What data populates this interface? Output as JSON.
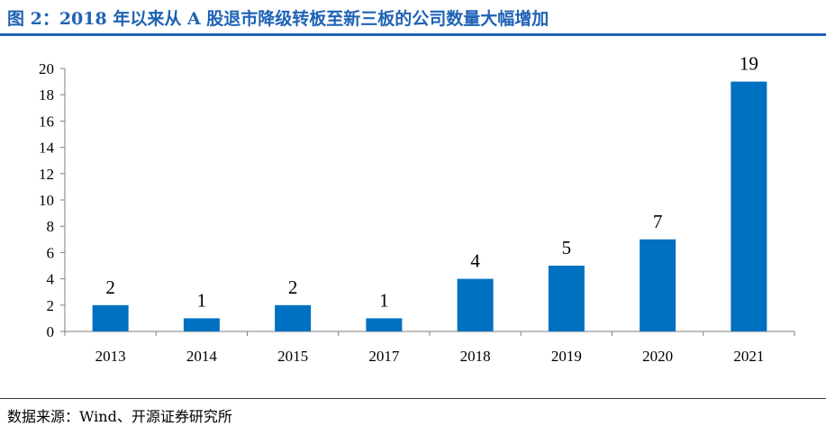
{
  "header": {
    "title": "图 2：2018 年以来从 A 股退市降级转板至新三板的公司数量大幅增加"
  },
  "footer": {
    "source": "数据来源：Wind、开源证券研究所"
  },
  "chart_data": {
    "type": "bar",
    "title": "图 2：2018 年以来从 A 股退市降级转板至新三板的公司数量大幅增加",
    "xlabel": "",
    "ylabel": "",
    "categories": [
      "2013",
      "2014",
      "2015",
      "2017",
      "2018",
      "2019",
      "2020",
      "2021"
    ],
    "values": [
      2,
      1,
      2,
      1,
      4,
      5,
      7,
      19
    ],
    "ylim": [
      0,
      20
    ],
    "yticks": [
      0,
      2,
      4,
      6,
      8,
      10,
      12,
      14,
      16,
      18,
      20
    ],
    "grid": false,
    "legend": "none",
    "bar_color": "#0070c0",
    "title_color": "#1f63b5"
  }
}
